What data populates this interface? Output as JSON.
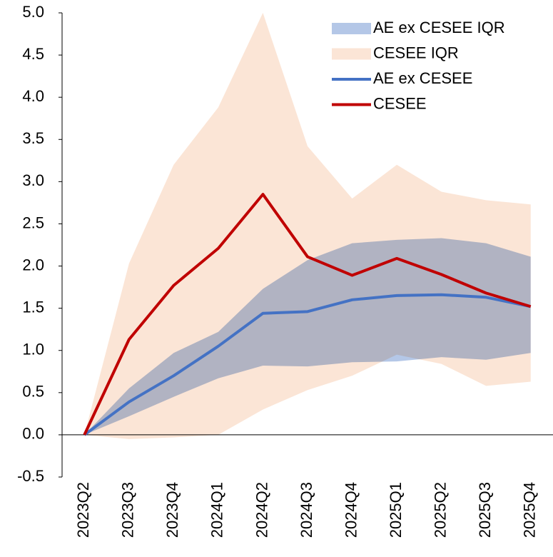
{
  "chart_data": {
    "type": "line",
    "categories": [
      "2023Q2",
      "2023Q3",
      "2023Q4",
      "2024Q1",
      "2024Q2",
      "2024Q3",
      "2024Q4",
      "2025Q1",
      "2025Q2",
      "2025Q3",
      "2025Q4"
    ],
    "ylim": [
      -0.5,
      5.0
    ],
    "yticks": [
      -0.5,
      {
        "value": 0,
        "label": "0.0"
      },
      0.5,
      {
        "value": 1,
        "label": "1.0"
      },
      1.5,
      {
        "value": 2,
        "label": "2.0"
      },
      2.5,
      {
        "value": 3,
        "label": "3.0"
      },
      3.5,
      {
        "value": 4,
        "label": "4.0"
      },
      4.5,
      {
        "value": 5,
        "label": "5.0"
      }
    ],
    "series": [
      {
        "name": "AE ex CESEE IQR",
        "color": "#b4c7e7",
        "kind": "band",
        "upper": [
          0,
          0.55,
          0.97,
          1.22,
          1.73,
          2.07,
          2.27,
          2.31,
          2.33,
          2.27,
          2.11
        ],
        "lower": [
          0,
          0.22,
          0.45,
          0.67,
          0.82,
          0.81,
          0.86,
          0.87,
          0.92,
          0.89,
          0.97
        ]
      },
      {
        "name": "CESEE IQR",
        "color": "#fbe5d6",
        "kind": "band",
        "upper": [
          0,
          2.03,
          3.2,
          3.88,
          5.0,
          3.42,
          2.8,
          3.2,
          2.88,
          2.78,
          2.73
        ],
        "lower": [
          0,
          -0.05,
          -0.03,
          0.0,
          0.3,
          0.53,
          0.7,
          0.95,
          0.84,
          0.58,
          0.63
        ]
      },
      {
        "name": "AE ex CESEE",
        "color": "#4472c4",
        "kind": "line",
        "values": [
          0,
          0.39,
          0.7,
          1.05,
          1.44,
          1.46,
          1.6,
          1.65,
          1.66,
          1.63,
          1.52
        ]
      },
      {
        "name": "CESEE",
        "color": "#c00000",
        "kind": "line",
        "values": [
          0,
          1.13,
          1.77,
          2.21,
          2.85,
          2.11,
          1.89,
          2.09,
          1.9,
          1.68,
          1.52
        ]
      }
    ]
  }
}
